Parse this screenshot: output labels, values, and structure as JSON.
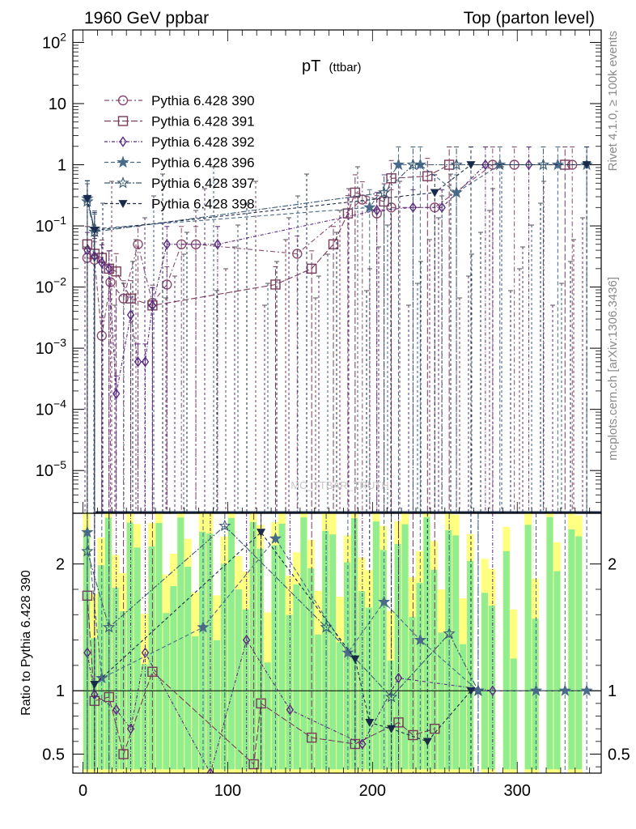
{
  "header": {
    "left": "1960 GeV ppbar",
    "right": "Top (parton level)"
  },
  "side_labels": {
    "rivet": "Rivet 4.1.0, ≥ 100k events",
    "mcplots": "mcplots.cern.ch [arXiv:1306.3436]"
  },
  "watermark": "MC_TTBAR_TRUTH",
  "chart_data": [
    {
      "type": "line",
      "title": "pT",
      "subtitle": "(ttbar)",
      "xlabel": "",
      "ylabel": "",
      "yscale": "log",
      "ylim": [
        2e-06,
        160
      ],
      "xlim": [
        -7,
        358
      ],
      "y_tick_labels": [
        "10^-5",
        "10^-4",
        "10^-3",
        "10^-2",
        "10^-1",
        "1",
        "10",
        "10^2"
      ],
      "legend_position": "top-left",
      "series": [
        {
          "name": "Pythia 6.428 390",
          "color": "#8a4a6e",
          "marker": "circle-open",
          "points": [
            [
              3,
              0.03
            ],
            [
              8,
              0.028
            ],
            [
              13,
              0.0016
            ],
            [
              19,
              0.012
            ],
            [
              28,
              0.0065
            ],
            [
              38,
              0.05
            ],
            [
              48,
              0.0055
            ],
            [
              58,
              0.011
            ],
            [
              68,
              0.05
            ],
            [
              78,
              0.05
            ],
            [
              148,
              0.035
            ],
            [
              193,
              0.27
            ],
            [
              203,
              0.16
            ],
            [
              213,
              0.2
            ],
            [
              243,
              0.2
            ],
            [
              283,
              1
            ],
            [
              298,
              1
            ],
            [
              338,
              1
            ]
          ]
        },
        {
          "name": "Pythia 6.428 391",
          "color": "#7a3a5a",
          "marker": "square-open",
          "points": [
            [
              3,
              0.05
            ],
            [
              8,
              0.035
            ],
            [
              13,
              0.03
            ],
            [
              18,
              0.02
            ],
            [
              23,
              0.018
            ],
            [
              33,
              0.0065
            ],
            [
              48,
              0.005
            ],
            [
              133,
              0.011
            ],
            [
              158,
              0.02
            ],
            [
              173,
              0.05
            ],
            [
              183,
              0.16
            ],
            [
              188,
              0.35
            ],
            [
              208,
              0.25
            ],
            [
              213,
              0.6
            ],
            [
              238,
              0.65
            ],
            [
              253,
              1
            ],
            [
              333,
              1
            ]
          ]
        },
        {
          "name": "Pythia 6.428 392",
          "color": "#5a2a82",
          "marker": "diamond-open",
          "points": [
            [
              3,
              0.04
            ],
            [
              8,
              0.032
            ],
            [
              13,
              0.025
            ],
            [
              18,
              0.02
            ],
            [
              23,
              0.00018
            ],
            [
              33,
              0.0035
            ],
            [
              38,
              0.0006
            ],
            [
              43,
              0.0006
            ],
            [
              48,
              0.005
            ],
            [
              58,
              0.05
            ],
            [
              93,
              0.05
            ],
            [
              203,
              0.18
            ],
            [
              228,
              0.2
            ],
            [
              248,
              0.2
            ],
            [
              278,
              1
            ],
            [
              308,
              1
            ]
          ]
        },
        {
          "name": "Pythia 6.428 396",
          "color": "#4a6a8a",
          "marker": "star",
          "points": [
            [
              3,
              0.28
            ],
            [
              8,
              0.09
            ],
            [
              198,
              0.2
            ],
            [
              218,
              1
            ],
            [
              233,
              1
            ],
            [
              258,
              0.35
            ],
            [
              288,
              1
            ],
            [
              328,
              1
            ],
            [
              348,
              1
            ]
          ]
        },
        {
          "name": "Pythia 6.428 397",
          "color": "#3a5a72",
          "marker": "star-open",
          "points": [
            [
              3,
              0.25
            ],
            [
              8,
              0.08
            ],
            [
              208,
              0.35
            ],
            [
              228,
              1
            ],
            [
              258,
              1
            ],
            [
              318,
              1
            ]
          ]
        },
        {
          "name": "Pythia 6.428 398",
          "color": "#1a2a4a",
          "marker": "triangle-down",
          "points": [
            [
              3,
              0.28
            ],
            [
              8,
              0.085
            ],
            [
              243,
              0.35
            ],
            [
              268,
              1
            ],
            [
              348,
              1
            ]
          ]
        }
      ]
    },
    {
      "type": "line",
      "title": "",
      "xlabel": "",
      "ylabel": "Ratio to Pythia 6.428 390",
      "ylim": [
        0.35,
        2.4
      ],
      "xlim": [
        -7,
        358
      ],
      "x_ticks": [
        0,
        100,
        200,
        300
      ],
      "y_tick_labels": [
        "0.5",
        "1",
        "2"
      ],
      "reference_line": 1,
      "bands": {
        "inner_color": "#90ee90",
        "outer_color": "#ffff80"
      },
      "series": [
        {
          "name": "Pythia 6.428 391",
          "points": [
            [
              3,
              1.75
            ],
            [
              8,
              0.92
            ],
            [
              18,
              0.95
            ],
            [
              28,
              0.5
            ],
            [
              48,
              1.15
            ],
            [
              118,
              0.42
            ],
            [
              123,
              0.9
            ],
            [
              158,
              0.63
            ],
            [
              188,
              0.58
            ],
            [
              218,
              0.75
            ],
            [
              228,
              0.65
            ],
            [
              243,
              0.7
            ]
          ]
        },
        {
          "name": "Pythia 6.428 392",
          "points": [
            [
              3,
              1.3
            ],
            [
              8,
              0.97
            ],
            [
              23,
              0.85
            ],
            [
              33,
              0.7
            ],
            [
              43,
              1.3
            ],
            [
              88,
              0.35
            ],
            [
              113,
              1.4
            ],
            [
              143,
              0.85
            ],
            [
              193,
              0.58
            ],
            [
              218,
              1.1
            ],
            [
              283,
              1
            ]
          ]
        },
        {
          "name": "Pythia 6.428 396",
          "points": [
            [
              3,
              2.25
            ],
            [
              13,
              1.1
            ],
            [
              83,
              1.5
            ],
            [
              133,
              2.2
            ],
            [
              183,
              1.3
            ],
            [
              208,
              1.7
            ],
            [
              233,
              1.4
            ],
            [
              273,
              1
            ],
            [
              313,
              1
            ],
            [
              333,
              1
            ],
            [
              348,
              1
            ]
          ]
        },
        {
          "name": "Pythia 6.428 397",
          "points": [
            [
              3,
              2.1
            ],
            [
              18,
              1.5
            ],
            [
              98,
              2.3
            ],
            [
              168,
              1.5
            ],
            [
              213,
              0.95
            ],
            [
              253,
              1.45
            ],
            [
              273,
              1
            ]
          ]
        },
        {
          "name": "Pythia 6.428 398",
          "points": [
            [
              8,
              1.05
            ],
            [
              123,
              2.25
            ],
            [
              188,
              1.25
            ],
            [
              198,
              0.75
            ],
            [
              213,
              0.7
            ],
            [
              238,
              0.6
            ],
            [
              268,
              1
            ]
          ]
        }
      ]
    }
  ]
}
